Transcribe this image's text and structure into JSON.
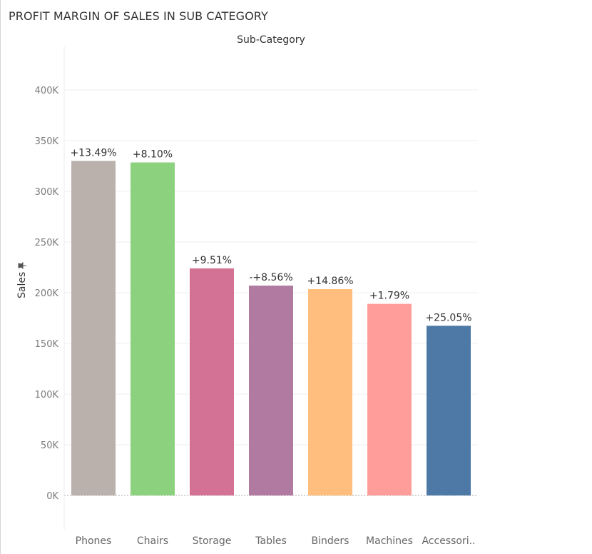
{
  "title": "PROFIT MARGIN OF SALES IN SUB CATEGORY",
  "chart_data": {
    "type": "bar",
    "column_header": "Sub-Category",
    "ylabel": "Sales",
    "ylim": [
      0,
      440000
    ],
    "yticks": [
      0,
      50000,
      100000,
      150000,
      200000,
      250000,
      300000,
      350000,
      400000
    ],
    "ytick_labels": [
      "0K",
      "50K",
      "100K",
      "150K",
      "200K",
      "250K",
      "300K",
      "350K",
      "400K"
    ],
    "grid": true,
    "categories": [
      "Phones",
      "Chairs",
      "Storage",
      "Tables",
      "Binders",
      "Machines",
      "Accessori.."
    ],
    "values": [
      330000,
      328500,
      224000,
      207000,
      203500,
      189000,
      167400
    ],
    "data_labels": [
      "+13.49%",
      "+8.10%",
      "+9.51%",
      "-+8.56%",
      "+14.86%",
      "+1.79%",
      "+25.05%"
    ],
    "colors": [
      "#bab0ac",
      "#8cd17d",
      "#d37295",
      "#b07aa1",
      "#ffbe7d",
      "#ff9d9a",
      "#4e79a7"
    ]
  }
}
